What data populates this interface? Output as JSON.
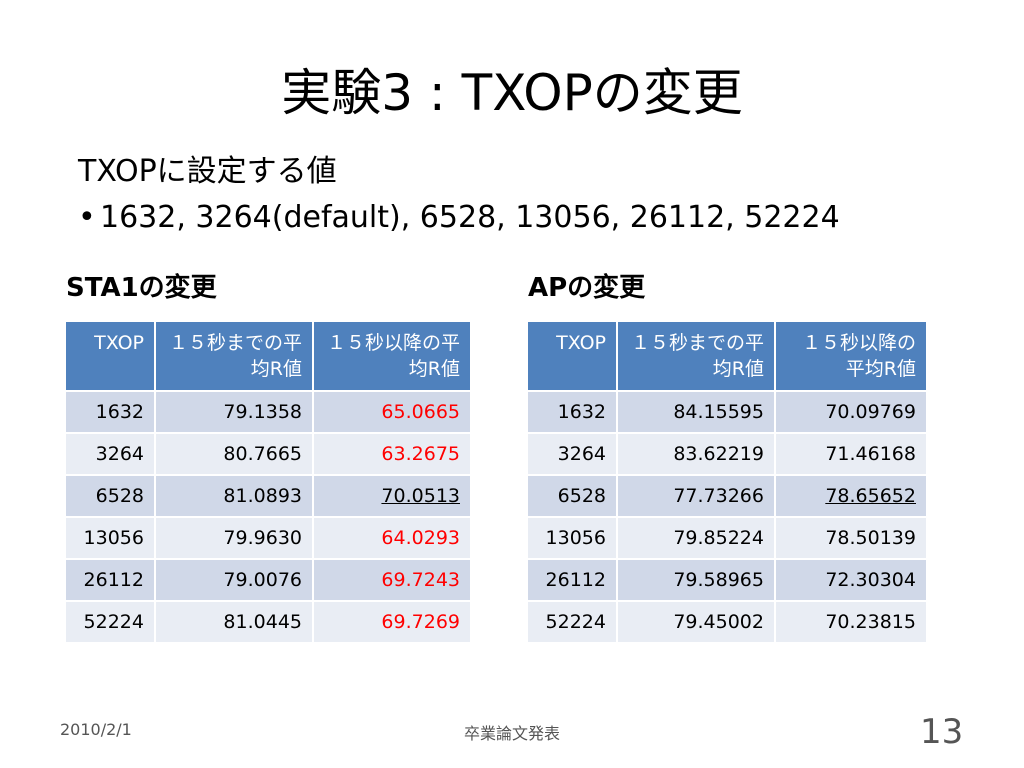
{
  "title": "実験3 : TXOPの変更",
  "intro": "TXOPに設定する値",
  "bullet": "1632, 3264(default), 6528, 13056, 26112, 52224",
  "left_table": {
    "label": "STA1の変更",
    "headers": [
      "TXOP",
      "１５秒までの平均R値",
      "１５秒以降の平均R値"
    ],
    "rows": [
      {
        "txop": "1632",
        "before": "79.1358",
        "after": "65.0665",
        "style": "red"
      },
      {
        "txop": "3264",
        "before": "80.7665",
        "after": "63.2675",
        "style": "red"
      },
      {
        "txop": "6528",
        "before": "81.0893",
        "after": "70.0513",
        "style": "ul"
      },
      {
        "txop": "13056",
        "before": "79.9630",
        "after": "64.0293",
        "style": "red"
      },
      {
        "txop": "26112",
        "before": "79.0076",
        "after": "69.7243",
        "style": "red"
      },
      {
        "txop": "52224",
        "before": "81.0445",
        "after": "69.7269",
        "style": "red"
      }
    ]
  },
  "right_table": {
    "label": "APの変更",
    "headers": [
      "TXOP",
      "１５秒までの平均R値",
      "１５秒以降の平均R値"
    ],
    "rows": [
      {
        "txop": "1632",
        "before": "84.15595",
        "after": "70.09769",
        "style": ""
      },
      {
        "txop": "3264",
        "before": "83.62219",
        "after": "71.46168",
        "style": ""
      },
      {
        "txop": "6528",
        "before": "77.73266",
        "after": "78.65652",
        "style": "ul"
      },
      {
        "txop": "13056",
        "before": "79.85224",
        "after": "78.50139",
        "style": ""
      },
      {
        "txop": "26112",
        "before": "79.58965",
        "after": "72.30304",
        "style": ""
      },
      {
        "txop": "52224",
        "before": "79.45002",
        "after": "70.23815",
        "style": ""
      }
    ]
  },
  "footer": {
    "date": "2010/2/1",
    "center": "卒業論文発表",
    "page": "13"
  }
}
